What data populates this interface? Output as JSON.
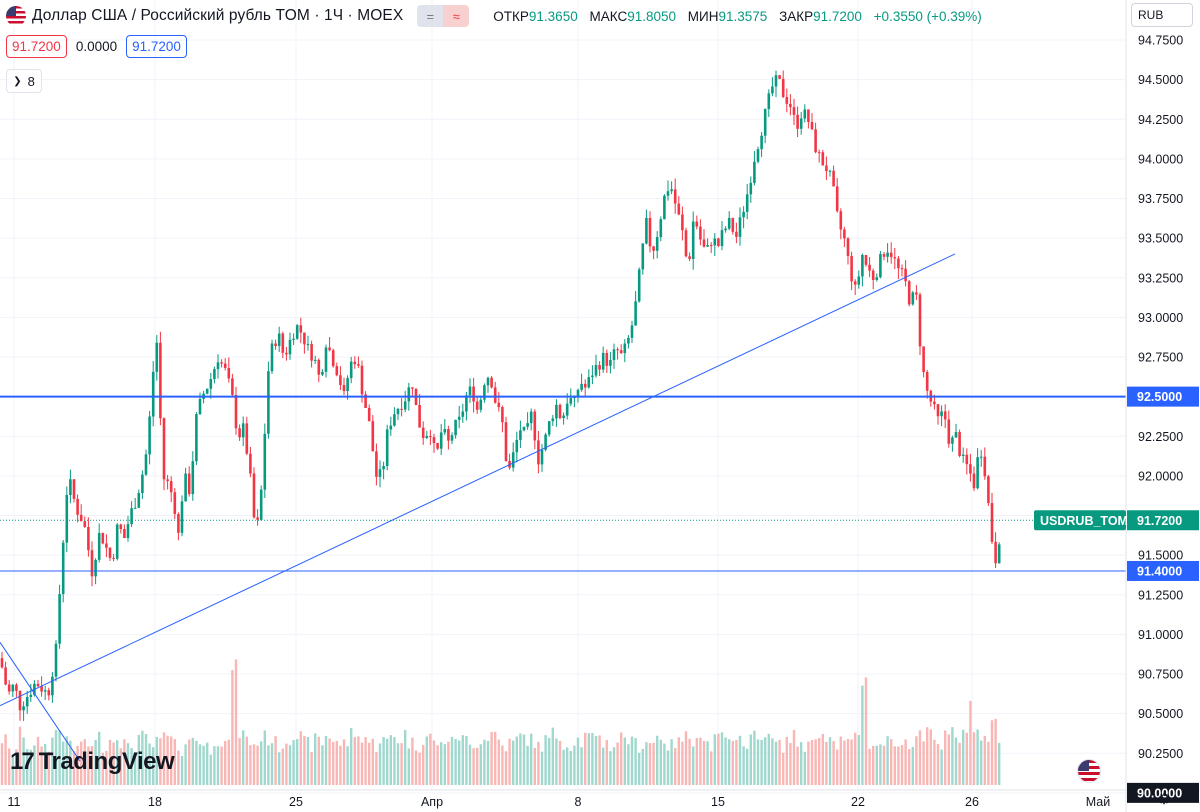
{
  "header": {
    "title": "Доллар США / Российский рубль TOM · 1Ч · MOEX",
    "pill_left": "=",
    "pill_right": "≈",
    "ohlc": [
      {
        "label": "ОТКР",
        "value": "91.3650"
      },
      {
        "label": "МАКС",
        "value": "91.8050"
      },
      {
        "label": "МИН",
        "value": "91.3575"
      },
      {
        "label": "ЗАКР",
        "value": "91.7200"
      }
    ],
    "change": "+0.3550 (+0.39%)"
  },
  "price_boxes": {
    "bid": "91.7200",
    "spread": "0.0000",
    "ask": "91.7200"
  },
  "indicators_toggle": {
    "icon": "chevron-down-icon",
    "count": "8"
  },
  "currency": "RUB",
  "branding": {
    "logo_text": "TradingView"
  },
  "colors": {
    "up": "#089981",
    "down": "#f23645",
    "up_volume": "#8fd1c6",
    "down_volume": "#f7a9a7",
    "horizontal_line": "#2962ff",
    "trend_line": "#2962ff",
    "grid": "#f0f3fa",
    "price_tag": "#089981"
  },
  "chart_data": {
    "type": "candlestick",
    "title": "Доллар США / Российский рубль TOM · 1Ч · MOEX",
    "ylim": [
      90.0,
      94.8
    ],
    "y_ticks": [
      "94.7500",
      "94.5000",
      "94.2500",
      "94.0000",
      "93.7500",
      "93.5000",
      "93.2500",
      "93.0000",
      "92.7500",
      "92.5000",
      "92.2500",
      "92.0000",
      "91.7500",
      "91.5000",
      "91.2500",
      "91.0000",
      "90.7500",
      "90.5000",
      "90.2500",
      "90.0000"
    ],
    "x_ticks": [
      "11",
      "18",
      "25",
      "Апр",
      "8",
      "15",
      "22",
      "26",
      "Май"
    ],
    "path": [
      [
        0,
        90.85
      ],
      [
        8,
        90.62
      ],
      [
        14,
        90.68
      ],
      [
        20,
        90.55
      ],
      [
        26,
        90.6
      ],
      [
        36,
        90.7
      ],
      [
        48,
        90.62
      ],
      [
        56,
        90.9
      ],
      [
        62,
        91.5
      ],
      [
        68,
        92.0
      ],
      [
        76,
        91.8
      ],
      [
        84,
        91.7
      ],
      [
        92,
        91.4
      ],
      [
        100,
        91.65
      ],
      [
        106,
        91.55
      ],
      [
        112,
        91.45
      ],
      [
        118,
        91.7
      ],
      [
        124,
        91.6
      ],
      [
        130,
        91.75
      ],
      [
        136,
        91.85
      ],
      [
        142,
        92.0
      ],
      [
        148,
        92.2
      ],
      [
        152,
        92.6
      ],
      [
        158,
        92.9
      ],
      [
        162,
        92.0
      ],
      [
        168,
        91.95
      ],
      [
        174,
        91.85
      ],
      [
        178,
        91.6
      ],
      [
        184,
        92.0
      ],
      [
        190,
        91.9
      ],
      [
        196,
        92.35
      ],
      [
        202,
        92.5
      ],
      [
        210,
        92.6
      ],
      [
        218,
        92.75
      ],
      [
        226,
        92.65
      ],
      [
        232,
        92.5
      ],
      [
        238,
        92.25
      ],
      [
        244,
        92.3
      ],
      [
        250,
        92.0
      ],
      [
        256,
        91.6
      ],
      [
        262,
        91.95
      ],
      [
        268,
        92.65
      ],
      [
        272,
        92.8
      ],
      [
        278,
        92.9
      ],
      [
        284,
        92.75
      ],
      [
        290,
        92.85
      ],
      [
        296,
        92.95
      ],
      [
        302,
        92.9
      ],
      [
        308,
        92.8
      ],
      [
        314,
        92.75
      ],
      [
        320,
        92.6
      ],
      [
        326,
        92.85
      ],
      [
        332,
        92.75
      ],
      [
        338,
        92.65
      ],
      [
        344,
        92.5
      ],
      [
        350,
        92.7
      ],
      [
        356,
        92.75
      ],
      [
        362,
        92.55
      ],
      [
        370,
        92.3
      ],
      [
        376,
        92.0
      ],
      [
        382,
        92.0
      ],
      [
        388,
        92.3
      ],
      [
        394,
        92.4
      ],
      [
        400,
        92.45
      ],
      [
        406,
        92.5
      ],
      [
        412,
        92.6
      ],
      [
        418,
        92.35
      ],
      [
        424,
        92.25
      ],
      [
        430,
        92.3
      ],
      [
        436,
        92.1
      ],
      [
        442,
        92.3
      ],
      [
        448,
        92.2
      ],
      [
        454,
        92.3
      ],
      [
        460,
        92.35
      ],
      [
        466,
        92.5
      ],
      [
        472,
        92.55
      ],
      [
        478,
        92.4
      ],
      [
        484,
        92.6
      ],
      [
        490,
        92.65
      ],
      [
        496,
        92.45
      ],
      [
        502,
        92.35
      ],
      [
        508,
        92.0
      ],
      [
        514,
        92.15
      ],
      [
        520,
        92.3
      ],
      [
        526,
        92.25
      ],
      [
        532,
        92.4
      ],
      [
        538,
        92.1
      ],
      [
        544,
        92.2
      ],
      [
        550,
        92.35
      ],
      [
        556,
        92.45
      ],
      [
        562,
        92.35
      ],
      [
        568,
        92.5
      ],
      [
        574,
        92.45
      ],
      [
        580,
        92.6
      ],
      [
        586,
        92.55
      ],
      [
        592,
        92.65
      ],
      [
        598,
        92.7
      ],
      [
        604,
        92.75
      ],
      [
        610,
        92.7
      ],
      [
        616,
        92.8
      ],
      [
        622,
        92.75
      ],
      [
        628,
        92.85
      ],
      [
        634,
        93.0
      ],
      [
        640,
        93.3
      ],
      [
        646,
        93.6
      ],
      [
        652,
        93.4
      ],
      [
        658,
        93.55
      ],
      [
        664,
        93.75
      ],
      [
        670,
        93.85
      ],
      [
        676,
        93.7
      ],
      [
        682,
        93.55
      ],
      [
        688,
        93.3
      ],
      [
        694,
        93.65
      ],
      [
        700,
        93.5
      ],
      [
        706,
        93.4
      ],
      [
        712,
        93.5
      ],
      [
        718,
        93.45
      ],
      [
        724,
        93.55
      ],
      [
        730,
        93.6
      ],
      [
        736,
        93.5
      ],
      [
        742,
        93.65
      ],
      [
        748,
        93.8
      ],
      [
        754,
        94.0
      ],
      [
        760,
        94.15
      ],
      [
        766,
        94.3
      ],
      [
        772,
        94.45
      ],
      [
        778,
        94.5
      ],
      [
        784,
        94.4
      ],
      [
        790,
        94.35
      ],
      [
        796,
        94.2
      ],
      [
        802,
        94.3
      ],
      [
        808,
        94.25
      ],
      [
        814,
        94.1
      ],
      [
        820,
        94.0
      ],
      [
        826,
        93.95
      ],
      [
        832,
        93.85
      ],
      [
        838,
        93.6
      ],
      [
        844,
        93.5
      ],
      [
        850,
        93.3
      ],
      [
        856,
        93.15
      ],
      [
        862,
        93.4
      ],
      [
        868,
        93.3
      ],
      [
        874,
        93.25
      ],
      [
        880,
        93.35
      ],
      [
        886,
        93.45
      ],
      [
        892,
        93.4
      ],
      [
        898,
        93.3
      ],
      [
        904,
        93.25
      ],
      [
        910,
        93.1
      ],
      [
        916,
        93.15
      ],
      [
        922,
        92.7
      ],
      [
        926,
        92.55
      ],
      [
        932,
        92.45
      ],
      [
        938,
        92.35
      ],
      [
        944,
        92.4
      ],
      [
        950,
        92.2
      ],
      [
        956,
        92.25
      ],
      [
        962,
        92.1
      ],
      [
        968,
        92.05
      ],
      [
        974,
        91.95
      ],
      [
        980,
        92.2
      ],
      [
        986,
        92.0
      ],
      [
        990,
        91.7
      ],
      [
        994,
        91.5
      ],
      [
        998,
        91.45
      ],
      [
        1000,
        91.72
      ]
    ],
    "volume": [
      12,
      8,
      9,
      14,
      10,
      9,
      11,
      10,
      12,
      15,
      13,
      11,
      9,
      12,
      10,
      11,
      13,
      10,
      12,
      14,
      11,
      9,
      10,
      13,
      12,
      10,
      11,
      14,
      12,
      10,
      9,
      11,
      13,
      12,
      10,
      9,
      12,
      11,
      10,
      35,
      14,
      12,
      11,
      10,
      13,
      12,
      11,
      10,
      12,
      14,
      13,
      11,
      10,
      12,
      11,
      13,
      12,
      10,
      11,
      14,
      12,
      13,
      11,
      10,
      12,
      11,
      13,
      12,
      14,
      11,
      10,
      12,
      13,
      11,
      10,
      12,
      11,
      13,
      12,
      10,
      11,
      12,
      13,
      14,
      12,
      10,
      11,
      12,
      13,
      12,
      11,
      10,
      12,
      14,
      13,
      11,
      10,
      12,
      11,
      13,
      12,
      14,
      11,
      10,
      12,
      13,
      12,
      11,
      10,
      12,
      11,
      13,
      12,
      10,
      11,
      12,
      13,
      12,
      14,
      11,
      10,
      12,
      13,
      11,
      10,
      12,
      11,
      13,
      12,
      14,
      12,
      11,
      10,
      12,
      13,
      11,
      10,
      12,
      14,
      13,
      11,
      10,
      12,
      11,
      13,
      12,
      30,
      11,
      10,
      12,
      13,
      11,
      10,
      12,
      11,
      13,
      12,
      14,
      11,
      10,
      13,
      18,
      12,
      14,
      22,
      16,
      12,
      11,
      19,
      13
    ],
    "horizontal_lines": [
      {
        "price": 92.5,
        "label": "92.5000",
        "weight": "thick"
      },
      {
        "price": 91.4,
        "label": "91.4000",
        "weight": "thin"
      }
    ],
    "trend_lines": [
      {
        "from": [
          0,
          90.55
        ],
        "to": [
          955,
          93.4
        ]
      },
      {
        "from": [
          0,
          90.95
        ],
        "to": [
          80,
          90.2
        ]
      }
    ],
    "last_price": {
      "symbol": "USDRUB_TOM",
      "value": "91.7200",
      "price": 91.72
    },
    "bottom_label": {
      "value": "90.0000"
    }
  }
}
